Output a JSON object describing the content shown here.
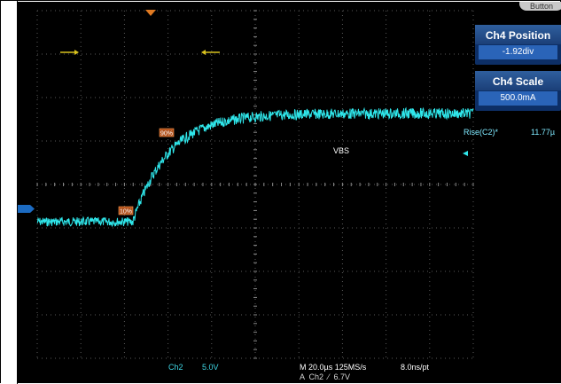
{
  "top_button_label": "Button",
  "side_menu": {
    "items": [
      {
        "title": "Ch4 Position",
        "value": "-1.92div"
      },
      {
        "title": "Ch4 Scale",
        "value": "500.0mA"
      }
    ]
  },
  "measurement": {
    "name": "Rise(C2)*",
    "value": "11.77µ"
  },
  "waveform": {
    "label": "VBS"
  },
  "markers": {
    "t10": "10%",
    "t90": "90%"
  },
  "status_bar": {
    "channel": "Ch2",
    "scale": "5.0V",
    "timebase": "M 20.0µs 125MS/s",
    "resolution": "8.0ns/pt",
    "trigger": "A  Ch2  ⁄  6.7V"
  },
  "colors": {
    "trace": "#2fe6ea",
    "grid": "#5a5a5a",
    "menu_header": "#1b3f78",
    "menu_value": "#2a64b8",
    "cursor_arrow": "#d9c21d",
    "trigger_marker": "#e07a22"
  }
}
